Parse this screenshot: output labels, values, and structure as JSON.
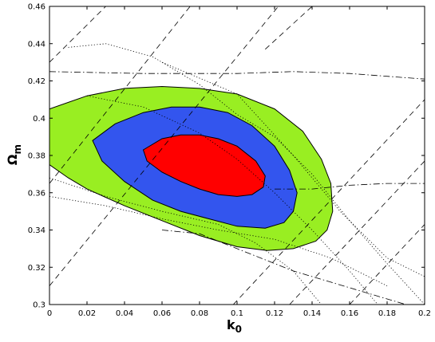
{
  "chart_data": {
    "type": "contour",
    "xlabel": "k",
    "xlabel_sub": "0",
    "ylabel": "Ω",
    "ylabel_sub": "m",
    "xlim": [
      0,
      0.2
    ],
    "ylim": [
      0.3,
      0.46
    ],
    "x_ticks": [
      0,
      0.02,
      0.04,
      0.06,
      0.08,
      0.1,
      0.12,
      0.14,
      0.16,
      0.18,
      0.2
    ],
    "x_tick_labels": [
      "0",
      "0.02",
      "0.04",
      "0.06",
      "0.08",
      "0.1",
      "0.12",
      "0.14",
      "0.16",
      "0.18",
      "0.2"
    ],
    "y_ticks": [
      0.3,
      0.32,
      0.34,
      0.36,
      0.38,
      0.4,
      0.42,
      0.44,
      0.46
    ],
    "y_tick_labels": [
      "0.3",
      "0.32",
      "0.34",
      "0.36",
      "0.38",
      "0.4",
      "0.42",
      "0.44",
      "0.46"
    ],
    "grid": false,
    "regions": [
      {
        "level": "outer",
        "color": "#99ee22",
        "points": [
          [
            0.0,
            0.405
          ],
          [
            0.02,
            0.412
          ],
          [
            0.04,
            0.416
          ],
          [
            0.06,
            0.417
          ],
          [
            0.08,
            0.416
          ],
          [
            0.1,
            0.413
          ],
          [
            0.12,
            0.405
          ],
          [
            0.135,
            0.393
          ],
          [
            0.145,
            0.378
          ],
          [
            0.15,
            0.365
          ],
          [
            0.151,
            0.35
          ],
          [
            0.148,
            0.34
          ],
          [
            0.142,
            0.334
          ],
          [
            0.13,
            0.33
          ],
          [
            0.116,
            0.329
          ],
          [
            0.1,
            0.331
          ],
          [
            0.08,
            0.337
          ],
          [
            0.06,
            0.345
          ],
          [
            0.04,
            0.353
          ],
          [
            0.02,
            0.362
          ],
          [
            0.01,
            0.368
          ],
          [
            0.0,
            0.375
          ]
        ]
      },
      {
        "level": "middle",
        "color": "#3355ee",
        "points": [
          [
            0.023,
            0.388
          ],
          [
            0.035,
            0.397
          ],
          [
            0.05,
            0.403
          ],
          [
            0.065,
            0.406
          ],
          [
            0.08,
            0.406
          ],
          [
            0.095,
            0.403
          ],
          [
            0.108,
            0.396
          ],
          [
            0.12,
            0.385
          ],
          [
            0.128,
            0.372
          ],
          [
            0.132,
            0.36
          ],
          [
            0.13,
            0.35
          ],
          [
            0.125,
            0.344
          ],
          [
            0.115,
            0.341
          ],
          [
            0.1,
            0.342
          ],
          [
            0.085,
            0.346
          ],
          [
            0.07,
            0.35
          ],
          [
            0.055,
            0.356
          ],
          [
            0.04,
            0.366
          ],
          [
            0.028,
            0.377
          ]
        ]
      },
      {
        "level": "inner",
        "color": "#ff0000",
        "points": [
          [
            0.05,
            0.383
          ],
          [
            0.06,
            0.389
          ],
          [
            0.07,
            0.391
          ],
          [
            0.08,
            0.391
          ],
          [
            0.09,
            0.389
          ],
          [
            0.1,
            0.385
          ],
          [
            0.11,
            0.377
          ],
          [
            0.115,
            0.369
          ],
          [
            0.114,
            0.363
          ],
          [
            0.108,
            0.359
          ],
          [
            0.1,
            0.358
          ],
          [
            0.09,
            0.359
          ],
          [
            0.08,
            0.362
          ],
          [
            0.07,
            0.366
          ],
          [
            0.06,
            0.371
          ],
          [
            0.052,
            0.377
          ]
        ]
      }
    ],
    "contour_lines": [
      {
        "style": "dashed",
        "points": [
          [
            0.0,
            0.43
          ],
          [
            0.04,
            0.47
          ]
        ]
      },
      {
        "style": "dashed",
        "points": [
          [
            0.0,
            0.365
          ],
          [
            0.075,
            0.46
          ]
        ]
      },
      {
        "style": "dashed",
        "points": [
          [
            0.0,
            0.31
          ],
          [
            0.122,
            0.46
          ]
        ]
      },
      {
        "style": "dashed",
        "points": [
          [
            0.098,
            0.3
          ],
          [
            0.2,
            0.41
          ]
        ]
      },
      {
        "style": "dashed",
        "points": [
          [
            0.128,
            0.3
          ],
          [
            0.2,
            0.377
          ]
        ]
      },
      {
        "style": "dashed",
        "points": [
          [
            0.16,
            0.3
          ],
          [
            0.2,
            0.343
          ]
        ]
      },
      {
        "style": "dashed",
        "points": [
          [
            0.115,
            0.437
          ],
          [
            0.14,
            0.46
          ]
        ]
      },
      {
        "style": "dotted",
        "points": [
          [
            0.01,
            0.438
          ],
          [
            0.03,
            0.44
          ],
          [
            0.055,
            0.433
          ],
          [
            0.08,
            0.418
          ],
          [
            0.1,
            0.402
          ],
          [
            0.12,
            0.39
          ],
          [
            0.14,
            0.37
          ],
          [
            0.16,
            0.345
          ],
          [
            0.18,
            0.322
          ],
          [
            0.2,
            0.3
          ]
        ]
      },
      {
        "style": "dotted",
        "points": [
          [
            0.02,
            0.412
          ],
          [
            0.05,
            0.406
          ],
          [
            0.08,
            0.392
          ],
          [
            0.1,
            0.378
          ],
          [
            0.12,
            0.36
          ],
          [
            0.14,
            0.34
          ],
          [
            0.16,
            0.318
          ],
          [
            0.175,
            0.3
          ]
        ]
      },
      {
        "style": "dotted",
        "points": [
          [
            0.0,
            0.368
          ],
          [
            0.03,
            0.358
          ],
          [
            0.06,
            0.35
          ],
          [
            0.09,
            0.343
          ],
          [
            0.11,
            0.333
          ],
          [
            0.13,
            0.318
          ],
          [
            0.145,
            0.3
          ]
        ]
      },
      {
        "style": "dotted",
        "points": [
          [
            0.06,
            0.43
          ],
          [
            0.1,
            0.413
          ],
          [
            0.13,
            0.38
          ],
          [
            0.155,
            0.35
          ],
          [
            0.18,
            0.325
          ],
          [
            0.2,
            0.315
          ]
        ]
      },
      {
        "style": "dotted",
        "points": [
          [
            0.0,
            0.358
          ],
          [
            0.03,
            0.353
          ],
          [
            0.06,
            0.346
          ],
          [
            0.09,
            0.34
          ],
          [
            0.12,
            0.335
          ],
          [
            0.15,
            0.325
          ],
          [
            0.18,
            0.31
          ]
        ]
      },
      {
        "style": "dashdot",
        "points": [
          [
            0.0,
            0.425
          ],
          [
            0.05,
            0.424
          ],
          [
            0.1,
            0.424
          ],
          [
            0.13,
            0.425
          ],
          [
            0.16,
            0.424
          ],
          [
            0.2,
            0.421
          ]
        ]
      },
      {
        "style": "dashdot",
        "points": [
          [
            0.06,
            0.34
          ],
          [
            0.08,
            0.338
          ],
          [
            0.1,
            0.33
          ],
          [
            0.13,
            0.318
          ],
          [
            0.15,
            0.312
          ],
          [
            0.18,
            0.303
          ],
          [
            0.19,
            0.3
          ]
        ]
      },
      {
        "style": "dashdot",
        "points": [
          [
            0.12,
            0.362
          ],
          [
            0.14,
            0.362
          ],
          [
            0.16,
            0.364
          ],
          [
            0.18,
            0.365
          ],
          [
            0.2,
            0.365
          ]
        ]
      }
    ]
  }
}
